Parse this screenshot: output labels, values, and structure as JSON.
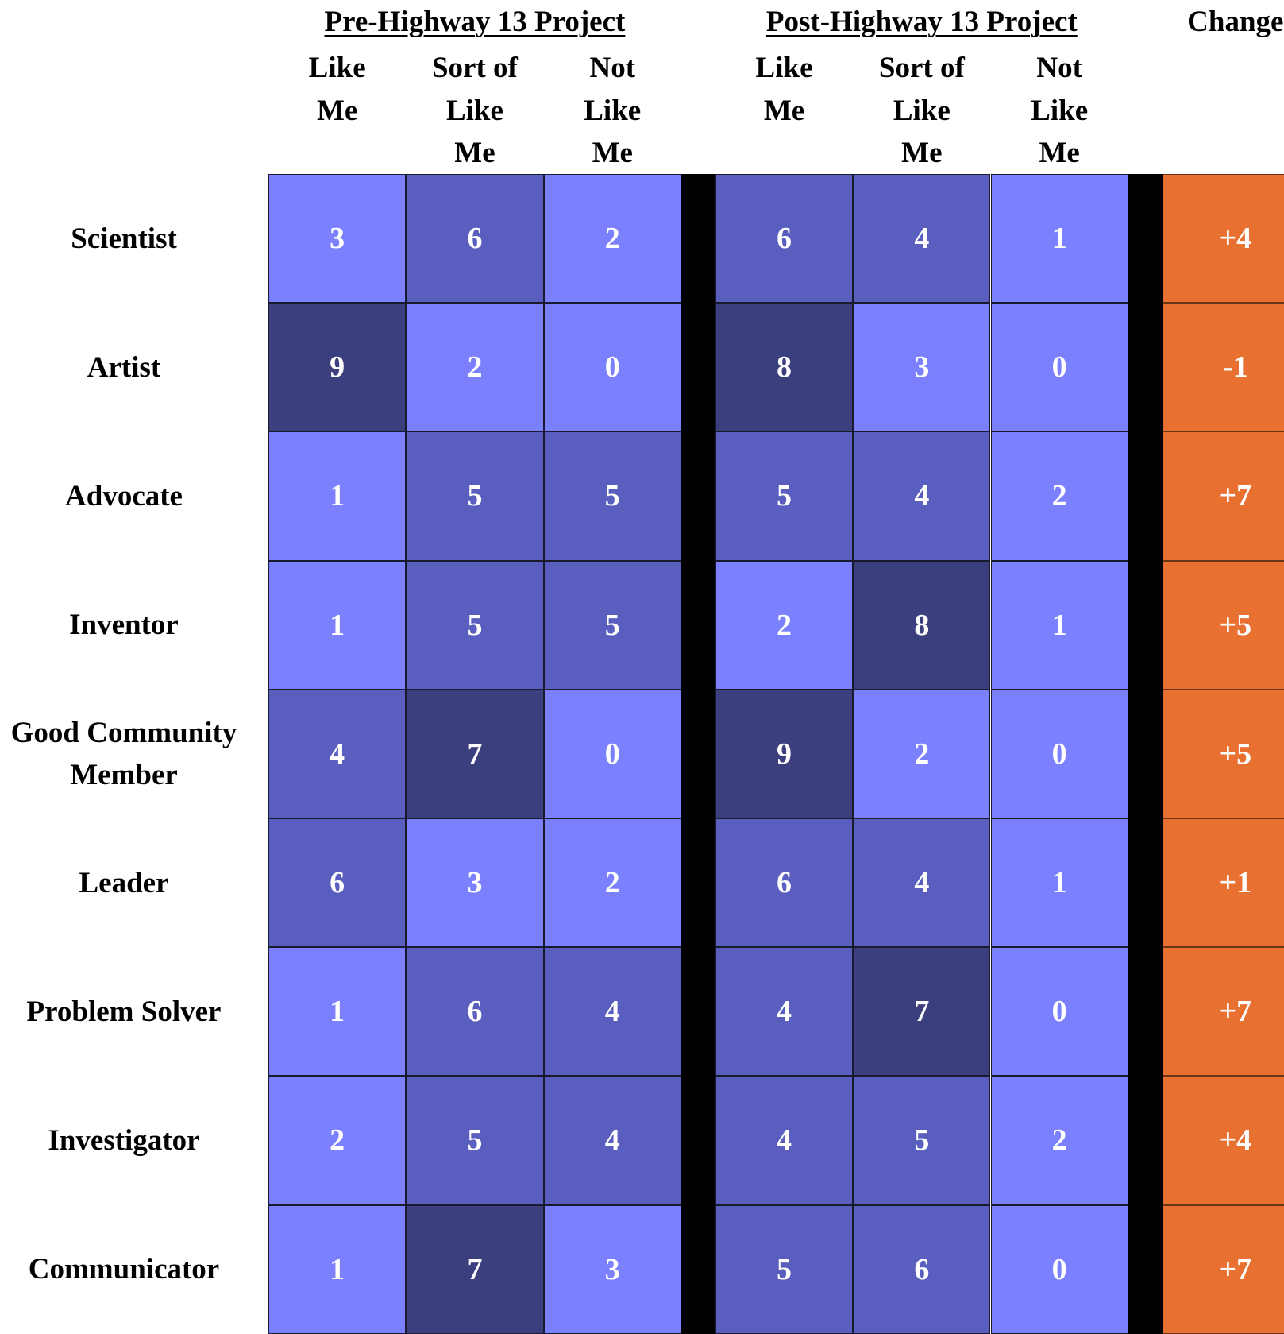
{
  "chart_data": {
    "type": "table",
    "title": "",
    "groups": [
      {
        "title": "Pre-Highway 13 Project",
        "columns": [
          [
            "Like",
            "Me"
          ],
          [
            "Sort of",
            "Like",
            "Me"
          ],
          [
            "Not",
            "Like",
            "Me"
          ]
        ]
      },
      {
        "title": "Post-Highway 13 Project",
        "columns": [
          [
            "Like",
            "Me"
          ],
          [
            "Sort of",
            "Like",
            "Me"
          ],
          [
            "Not",
            "Like",
            "Me"
          ]
        ]
      }
    ],
    "change_label": "Change",
    "rows": [
      {
        "label": "Scientist",
        "pre": [
          3,
          6,
          2
        ],
        "post": [
          6,
          4,
          1
        ],
        "change": "+4"
      },
      {
        "label": "Artist",
        "pre": [
          9,
          2,
          0
        ],
        "post": [
          8,
          3,
          0
        ],
        "change": "-1"
      },
      {
        "label": "Advocate",
        "pre": [
          1,
          5,
          5
        ],
        "post": [
          5,
          4,
          2
        ],
        "change": "+7"
      },
      {
        "label": "Inventor",
        "pre": [
          1,
          5,
          5
        ],
        "post": [
          2,
          8,
          1
        ],
        "change": "+5"
      },
      {
        "label": "Good Community Member",
        "pre": [
          4,
          7,
          0
        ],
        "post": [
          9,
          2,
          0
        ],
        "change": "+5"
      },
      {
        "label": "Leader",
        "pre": [
          6,
          3,
          2
        ],
        "post": [
          6,
          4,
          1
        ],
        "change": "+1"
      },
      {
        "label": "Problem Solver",
        "pre": [
          1,
          6,
          4
        ],
        "post": [
          4,
          7,
          0
        ],
        "change": "+7"
      },
      {
        "label": "Investigator",
        "pre": [
          2,
          5,
          4
        ],
        "post": [
          4,
          5,
          2
        ],
        "change": "+4"
      },
      {
        "label": "Communicator",
        "pre": [
          1,
          7,
          3
        ],
        "post": [
          5,
          6,
          0
        ],
        "change": "+7"
      }
    ],
    "colors": {
      "low": "#7b80ff",
      "mid": "#5a5fbf",
      "high": "#3c3f7d",
      "divider": "#000000",
      "change": "#e87132"
    }
  }
}
